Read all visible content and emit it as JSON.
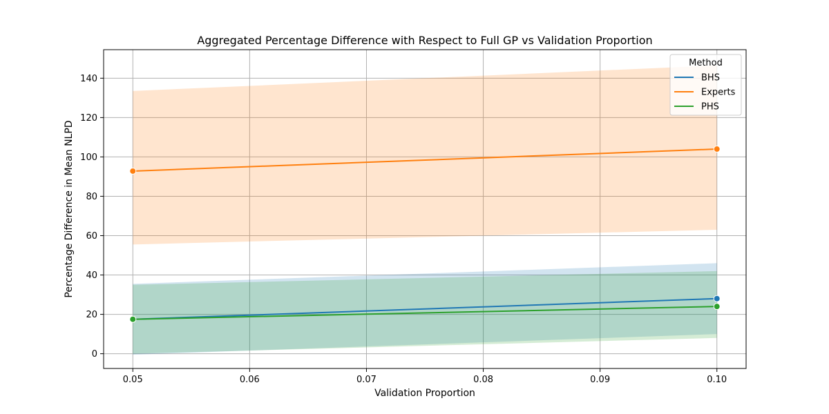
{
  "chart_data": {
    "type": "line",
    "title": "Aggregated Percentage Difference with Respect to Full GP vs Validation Proportion",
    "xlabel": "Validation Proportion",
    "ylabel": "Percentage Difference in Mean NLPD",
    "xlim": [
      0.0475,
      0.1025
    ],
    "ylim": [
      -7.5,
      154.5
    ],
    "xticks": [
      0.05,
      0.06,
      0.07,
      0.08,
      0.09,
      0.1
    ],
    "xtick_labels": [
      "0.05",
      "0.06",
      "0.07",
      "0.08",
      "0.09",
      "0.10"
    ],
    "yticks": [
      0,
      20,
      40,
      60,
      80,
      100,
      120,
      140
    ],
    "ytick_labels": [
      "0",
      "20",
      "40",
      "60",
      "80",
      "100",
      "120",
      "140"
    ],
    "grid": true,
    "legend": {
      "title": "Method",
      "placement": "top-right"
    },
    "x": [
      0.05,
      0.1
    ],
    "series": [
      {
        "name": "BHS",
        "color": "#1f77b4",
        "values": [
          17.5,
          28.0
        ],
        "lower": [
          -0.5,
          10.0
        ],
        "upper": [
          35.5,
          46.0
        ]
      },
      {
        "name": "Experts",
        "color": "#ff7f0e",
        "values": [
          92.8,
          104.0
        ],
        "lower": [
          55.5,
          63.0
        ],
        "upper": [
          133.5,
          146.5
        ]
      },
      {
        "name": "PHS",
        "color": "#2ca02c",
        "values": [
          17.5,
          24.0
        ],
        "lower": [
          0.0,
          8.0
        ],
        "upper": [
          35.0,
          42.0
        ]
      }
    ]
  }
}
